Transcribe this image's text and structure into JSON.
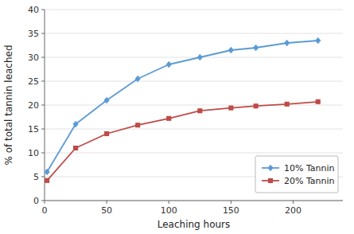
{
  "chart_data": {
    "type": "line",
    "xlabel": "Leaching hours",
    "ylabel": "% of total tannin leached",
    "x": [
      2,
      25,
      50,
      75,
      100,
      125,
      150,
      170,
      195,
      220
    ],
    "xlim": [
      0,
      240
    ],
    "ylim": [
      0,
      40
    ],
    "xticks": [
      0,
      50,
      100,
      150,
      200
    ],
    "yticks": [
      0,
      5,
      10,
      15,
      20,
      25,
      30,
      35,
      40
    ],
    "grid": true,
    "legend": "lower right",
    "series": [
      {
        "name": "10% Tannin",
        "color": "#5B9BD5",
        "marker": "diamond",
        "values": [
          6.0,
          16.0,
          21.0,
          25.5,
          28.5,
          30.0,
          31.5,
          32.0,
          33.0,
          33.5
        ]
      },
      {
        "name": "20% Tannin",
        "color": "#BE4B48",
        "marker": "square",
        "values": [
          4.2,
          11.0,
          14.0,
          15.8,
          17.2,
          18.8,
          19.4,
          19.8,
          20.2,
          20.7
        ]
      }
    ]
  }
}
